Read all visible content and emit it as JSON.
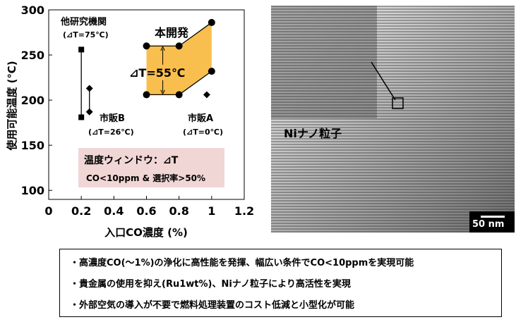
{
  "chart_data": {
    "type": "line",
    "xlabel": "入口CO濃度 (%)",
    "ylabel": "使用可能温度 (℃)",
    "xlim": [
      0,
      1.2
    ],
    "ylim": [
      90,
      300
    ],
    "x_ticks": [
      "0",
      "0.2",
      "0.4",
      "0.6",
      "0.8",
      "1",
      "1.2"
    ],
    "y_ticks": [
      "100",
      "150",
      "200",
      "250",
      "300"
    ],
    "series": [
      {
        "name": "本開発 (上限)",
        "x": [
          0.6,
          0.8,
          1.0
        ],
        "y": [
          260,
          260,
          286
        ]
      },
      {
        "name": "本開発 (下限)",
        "x": [
          0.6,
          0.8,
          1.0
        ],
        "y": [
          206,
          206,
          232
        ]
      },
      {
        "name": "他研究機関",
        "x": [
          0.2,
          0.2
        ],
        "y": [
          256,
          181
        ]
      },
      {
        "name": "市販B",
        "x": [
          0.25,
          0.25
        ],
        "y": [
          213,
          187
        ]
      },
      {
        "name": "市販A",
        "x": [
          0.97
        ],
        "y": [
          206
        ]
      }
    ],
    "annotations": {
      "own": "本開発",
      "own_dt": "⊿T=55℃",
      "other": "他研究機関",
      "other_dt": "(⊿T=75℃)",
      "b": "市販B",
      "b_dt": "(⊿T=26℃)",
      "a": "市販A",
      "a_dt": "(⊿T=0℃)",
      "window_title": "温度ウィンドウ：⊿T",
      "window_cond": "CO<10ppm & 選択率>50%"
    },
    "colors": {
      "band": "#f9bf4e",
      "window_box": "#f1d6d6"
    }
  },
  "tem": {
    "label": "Niナノ粒子",
    "scale": "50 nm"
  },
  "summary": [
    "・高濃度CO(～1%)の浄化に高性能を発揮、幅広い条件でCO<10ppmを実現可能",
    "・貴金属の使用を抑え(Ru1wt%)、Niナノ粒子により高活性を実現",
    "・外部空気の導入が不要で燃料処理装置のコスト低減と小型化が可能"
  ]
}
